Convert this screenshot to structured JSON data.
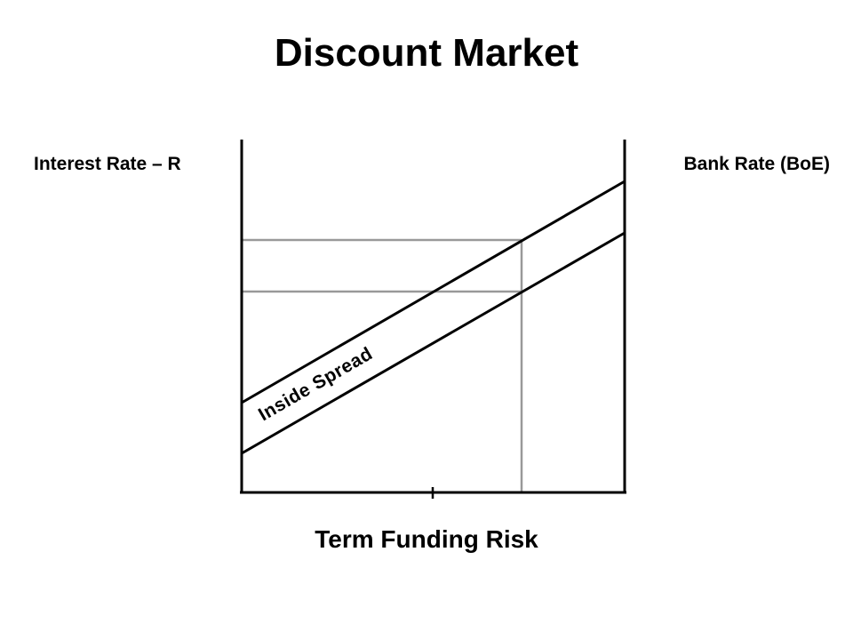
{
  "title": "Discount Market",
  "labels": {
    "y_axis_left": "Interest Rate – R",
    "y_axis_right": "Bank Rate (BoE)",
    "x_axis": "Term Funding Risk",
    "spread": "Inside Spread"
  },
  "colors": {
    "line": "#000000",
    "guide": "#999999",
    "background": "#ffffff"
  }
}
